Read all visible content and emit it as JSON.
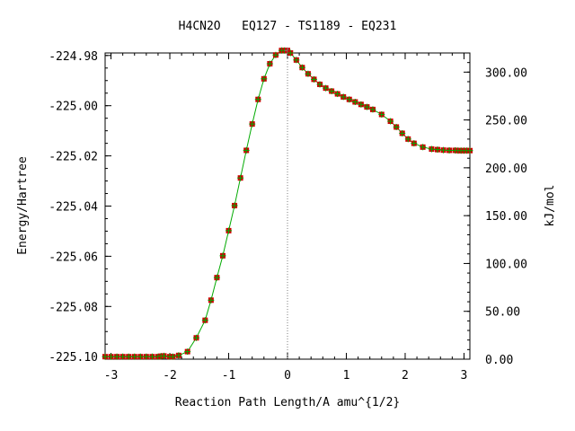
{
  "chart_data": {
    "type": "line",
    "title": "H4CN2O   EQ127 - TS1189 - EQ231",
    "xlabel": "Reaction Path Length/A amu^{1/2}",
    "ylabel": "Energy/Hartree",
    "y2label": "kJ/mol",
    "xlim": [
      -3.1,
      3.1
    ],
    "ylim": [
      -225.101,
      -224.979
    ],
    "y2lim": [
      0.0,
      320.0
    ],
    "x_ticks": [
      "-3",
      "-2",
      "-1",
      "0",
      "1",
      "2",
      "3"
    ],
    "y_ticks": [
      "-224.98",
      "-225.00",
      "-225.02",
      "-225.04",
      "-225.06",
      "-225.08",
      "-225.10"
    ],
    "y2_ticks": [
      "300.00",
      "250.00",
      "200.00",
      "150.00",
      "100.00",
      "50.00",
      "0.00"
    ],
    "ts_x": 0,
    "colors": {
      "line": "#00aa00",
      "marker": "#cc0000",
      "ts_marker": "#808080"
    },
    "series": [
      {
        "x": [
          -3.1,
          -3.0,
          -2.9,
          -2.8,
          -2.7,
          -2.6,
          -2.5,
          -2.4,
          -2.3,
          -2.2,
          -2.15,
          -2.1,
          -2.0,
          -1.95,
          -1.85,
          -1.7,
          -1.55,
          -1.4,
          -1.3,
          -1.2,
          -1.1,
          -1.0,
          -0.9,
          -0.8,
          -0.7,
          -0.6,
          -0.5,
          -0.4,
          -0.3,
          -0.2,
          -0.1,
          -0.05,
          0.0,
          0.05,
          0.15,
          0.25,
          0.35,
          0.45,
          0.55,
          0.65,
          0.75,
          0.85,
          0.95,
          1.05,
          1.15,
          1.25,
          1.35,
          1.45,
          1.6,
          1.75,
          1.85,
          1.95,
          2.05,
          2.15,
          2.3,
          2.45,
          2.55,
          2.65,
          2.75,
          2.85,
          2.9,
          2.95,
          3.0,
          3.05,
          3.1
        ],
        "y": [
          -225.1,
          -225.1,
          -225.1,
          -225.1,
          -225.1,
          -225.1,
          -225.1,
          -225.1,
          -225.1,
          -225.1,
          -225.0998,
          -225.0997,
          -225.1,
          -225.1,
          -225.0995,
          -225.098,
          -225.0925,
          -225.0855,
          -225.0775,
          -225.0685,
          -225.0598,
          -225.0498,
          -225.0398,
          -225.0288,
          -225.0178,
          -225.0073,
          -224.9975,
          -224.9893,
          -224.9833,
          -224.9798,
          -224.978,
          -224.978,
          -224.978,
          -224.979,
          -224.9818,
          -224.9848,
          -224.9873,
          -224.9895,
          -224.9915,
          -224.993,
          -224.9942,
          -224.9953,
          -224.9965,
          -224.9975,
          -224.9985,
          -224.9995,
          -225.0005,
          -225.0015,
          -225.0035,
          -225.0062,
          -225.0085,
          -225.011,
          -225.0133,
          -225.015,
          -225.0165,
          -225.0173,
          -225.0175,
          -225.0177,
          -225.0178,
          -225.0178,
          -225.0179,
          -225.0179,
          -225.0179,
          -225.0179,
          -225.0179
        ]
      }
    ]
  }
}
